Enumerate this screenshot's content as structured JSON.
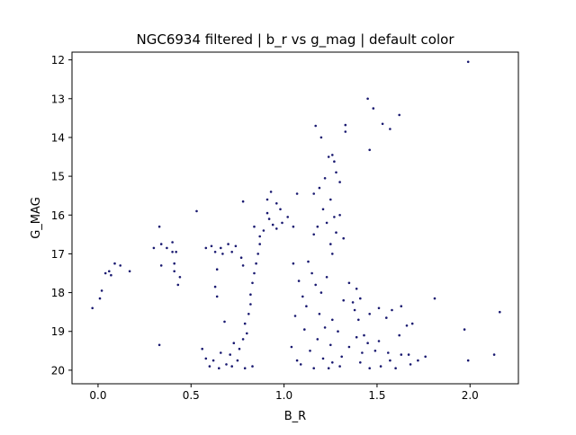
{
  "chart_data": {
    "type": "scatter",
    "title": "NGC6934 filtered | b_r vs g_mag | default color",
    "xlabel": "B_R",
    "ylabel": "G_MAG",
    "xlim": [
      -0.14,
      2.26
    ],
    "ylim": [
      20.35,
      11.8
    ],
    "y_inverted": true,
    "xticks": [
      0.0,
      0.5,
      1.0,
      1.5,
      2.0
    ],
    "xtick_labels": [
      "0.0",
      "0.5",
      "1.0",
      "1.5",
      "2.0"
    ],
    "yticks": [
      12,
      13,
      14,
      15,
      16,
      17,
      18,
      19,
      20
    ],
    "ytick_labels": [
      "12",
      "13",
      "14",
      "15",
      "16",
      "17",
      "18",
      "19",
      "20"
    ],
    "grid": false,
    "legend": "none",
    "marker_color": "#191970",
    "points": [
      [
        1.99,
        12.05
      ],
      [
        1.45,
        13.0
      ],
      [
        1.48,
        13.25
      ],
      [
        1.62,
        13.42
      ],
      [
        1.53,
        13.65
      ],
      [
        1.57,
        13.78
      ],
      [
        1.33,
        13.68
      ],
      [
        1.33,
        13.85
      ],
      [
        1.17,
        13.7
      ],
      [
        1.2,
        14.0
      ],
      [
        1.26,
        14.45
      ],
      [
        1.27,
        14.62
      ],
      [
        1.28,
        14.9
      ],
      [
        1.24,
        14.5
      ],
      [
        1.46,
        14.32
      ],
      [
        1.22,
        15.05
      ],
      [
        1.3,
        15.15
      ],
      [
        1.19,
        15.3
      ],
      [
        1.16,
        15.45
      ],
      [
        1.25,
        15.6
      ],
      [
        1.21,
        15.85
      ],
      [
        1.3,
        16.0
      ],
      [
        1.27,
        16.05
      ],
      [
        1.23,
        16.2
      ],
      [
        1.18,
        16.3
      ],
      [
        1.28,
        16.45
      ],
      [
        1.25,
        16.75
      ],
      [
        1.26,
        17.0
      ],
      [
        1.32,
        16.6
      ],
      [
        1.16,
        16.5
      ],
      [
        1.07,
        15.45
      ],
      [
        1.05,
        16.3
      ],
      [
        0.93,
        15.4
      ],
      [
        0.91,
        15.6
      ],
      [
        0.96,
        15.7
      ],
      [
        0.91,
        15.95
      ],
      [
        0.98,
        15.85
      ],
      [
        0.92,
        16.1
      ],
      [
        0.94,
        16.25
      ],
      [
        0.89,
        16.4
      ],
      [
        0.96,
        16.35
      ],
      [
        0.99,
        16.2
      ],
      [
        1.02,
        16.05
      ],
      [
        0.87,
        16.55
      ],
      [
        0.84,
        16.3
      ],
      [
        0.78,
        15.65
      ],
      [
        0.53,
        15.9
      ],
      [
        0.33,
        16.3
      ],
      [
        0.3,
        16.85
      ],
      [
        0.34,
        16.75
      ],
      [
        0.37,
        16.85
      ],
      [
        0.4,
        16.7
      ],
      [
        0.42,
        16.95
      ],
      [
        0.41,
        17.25
      ],
      [
        0.44,
        17.6
      ],
      [
        0.43,
        17.8
      ],
      [
        0.41,
        17.45
      ],
      [
        0.34,
        17.3
      ],
      [
        0.4,
        16.95
      ],
      [
        0.17,
        17.45
      ],
      [
        0.12,
        17.3
      ],
      [
        0.09,
        17.25
      ],
      [
        0.07,
        17.55
      ],
      [
        0.06,
        17.45
      ],
      [
        0.04,
        17.5
      ],
      [
        0.02,
        17.95
      ],
      [
        0.01,
        18.15
      ],
      [
        -0.03,
        18.4
      ],
      [
        0.33,
        19.35
      ],
      [
        0.58,
        16.85
      ],
      [
        0.61,
        16.8
      ],
      [
        0.63,
        16.95
      ],
      [
        0.66,
        16.85
      ],
      [
        0.7,
        16.75
      ],
      [
        0.72,
        16.95
      ],
      [
        0.67,
        17.0
      ],
      [
        0.64,
        17.4
      ],
      [
        0.63,
        17.85
      ],
      [
        0.64,
        18.1
      ],
      [
        0.77,
        17.1
      ],
      [
        0.78,
        17.3
      ],
      [
        0.74,
        16.8
      ],
      [
        1.35,
        17.75
      ],
      [
        1.39,
        17.9
      ],
      [
        1.32,
        18.2
      ],
      [
        1.37,
        18.25
      ],
      [
        1.38,
        18.45
      ],
      [
        1.41,
        18.15
      ],
      [
        1.4,
        18.7
      ],
      [
        1.46,
        18.55
      ],
      [
        1.51,
        18.4
      ],
      [
        1.55,
        18.65
      ],
      [
        1.58,
        18.45
      ],
      [
        1.63,
        18.35
      ],
      [
        1.66,
        18.85
      ],
      [
        1.69,
        18.8
      ],
      [
        1.62,
        19.1
      ],
      [
        1.51,
        19.25
      ],
      [
        1.45,
        19.3
      ],
      [
        1.49,
        19.5
      ],
      [
        1.56,
        19.55
      ],
      [
        1.63,
        19.6
      ],
      [
        1.68,
        19.85
      ],
      [
        1.72,
        19.75
      ],
      [
        1.76,
        19.65
      ],
      [
        1.81,
        18.15
      ],
      [
        1.97,
        18.95
      ],
      [
        1.99,
        19.75
      ],
      [
        2.13,
        19.6
      ],
      [
        2.16,
        18.5
      ],
      [
        1.41,
        19.8
      ],
      [
        1.52,
        19.9
      ],
      [
        1.57,
        19.75
      ],
      [
        1.46,
        19.95
      ],
      [
        1.6,
        19.95
      ],
      [
        1.67,
        19.6
      ],
      [
        1.43,
        19.1
      ],
      [
        1.39,
        19.15
      ],
      [
        1.35,
        19.4
      ],
      [
        1.42,
        19.55
      ],
      [
        1.31,
        19.65
      ],
      [
        1.26,
        19.8
      ],
      [
        1.24,
        19.95
      ],
      [
        1.3,
        19.9
      ],
      [
        1.13,
        17.2
      ],
      [
        1.15,
        17.5
      ],
      [
        1.17,
        17.8
      ],
      [
        1.2,
        18.0
      ],
      [
        1.23,
        17.6
      ],
      [
        1.12,
        18.35
      ],
      [
        1.19,
        18.55
      ],
      [
        1.26,
        18.7
      ],
      [
        1.22,
        18.9
      ],
      [
        1.29,
        19.0
      ],
      [
        1.18,
        19.2
      ],
      [
        1.25,
        19.35
      ],
      [
        1.14,
        19.5
      ],
      [
        1.21,
        19.7
      ],
      [
        1.09,
        19.85
      ],
      [
        1.16,
        19.95
      ],
      [
        1.05,
        17.25
      ],
      [
        1.08,
        17.7
      ],
      [
        1.1,
        18.1
      ],
      [
        1.06,
        18.6
      ],
      [
        1.11,
        18.95
      ],
      [
        1.04,
        19.4
      ],
      [
        1.07,
        19.75
      ],
      [
        0.72,
        19.9
      ],
      [
        0.75,
        19.75
      ],
      [
        0.69,
        19.85
      ],
      [
        0.65,
        19.95
      ],
      [
        0.62,
        19.75
      ],
      [
        0.58,
        19.7
      ],
      [
        0.56,
        19.45
      ],
      [
        0.66,
        19.55
      ],
      [
        0.71,
        19.6
      ],
      [
        0.73,
        19.3
      ],
      [
        0.76,
        19.45
      ],
      [
        0.78,
        19.2
      ],
      [
        0.8,
        19.05
      ],
      [
        0.79,
        18.8
      ],
      [
        0.81,
        18.55
      ],
      [
        0.82,
        18.3
      ],
      [
        0.82,
        18.05
      ],
      [
        0.83,
        17.75
      ],
      [
        0.84,
        17.5
      ],
      [
        0.85,
        17.25
      ],
      [
        0.86,
        17.0
      ],
      [
        0.87,
        16.75
      ],
      [
        0.68,
        18.75
      ],
      [
        0.6,
        19.9
      ],
      [
        0.79,
        19.95
      ],
      [
        0.83,
        19.9
      ]
    ]
  }
}
